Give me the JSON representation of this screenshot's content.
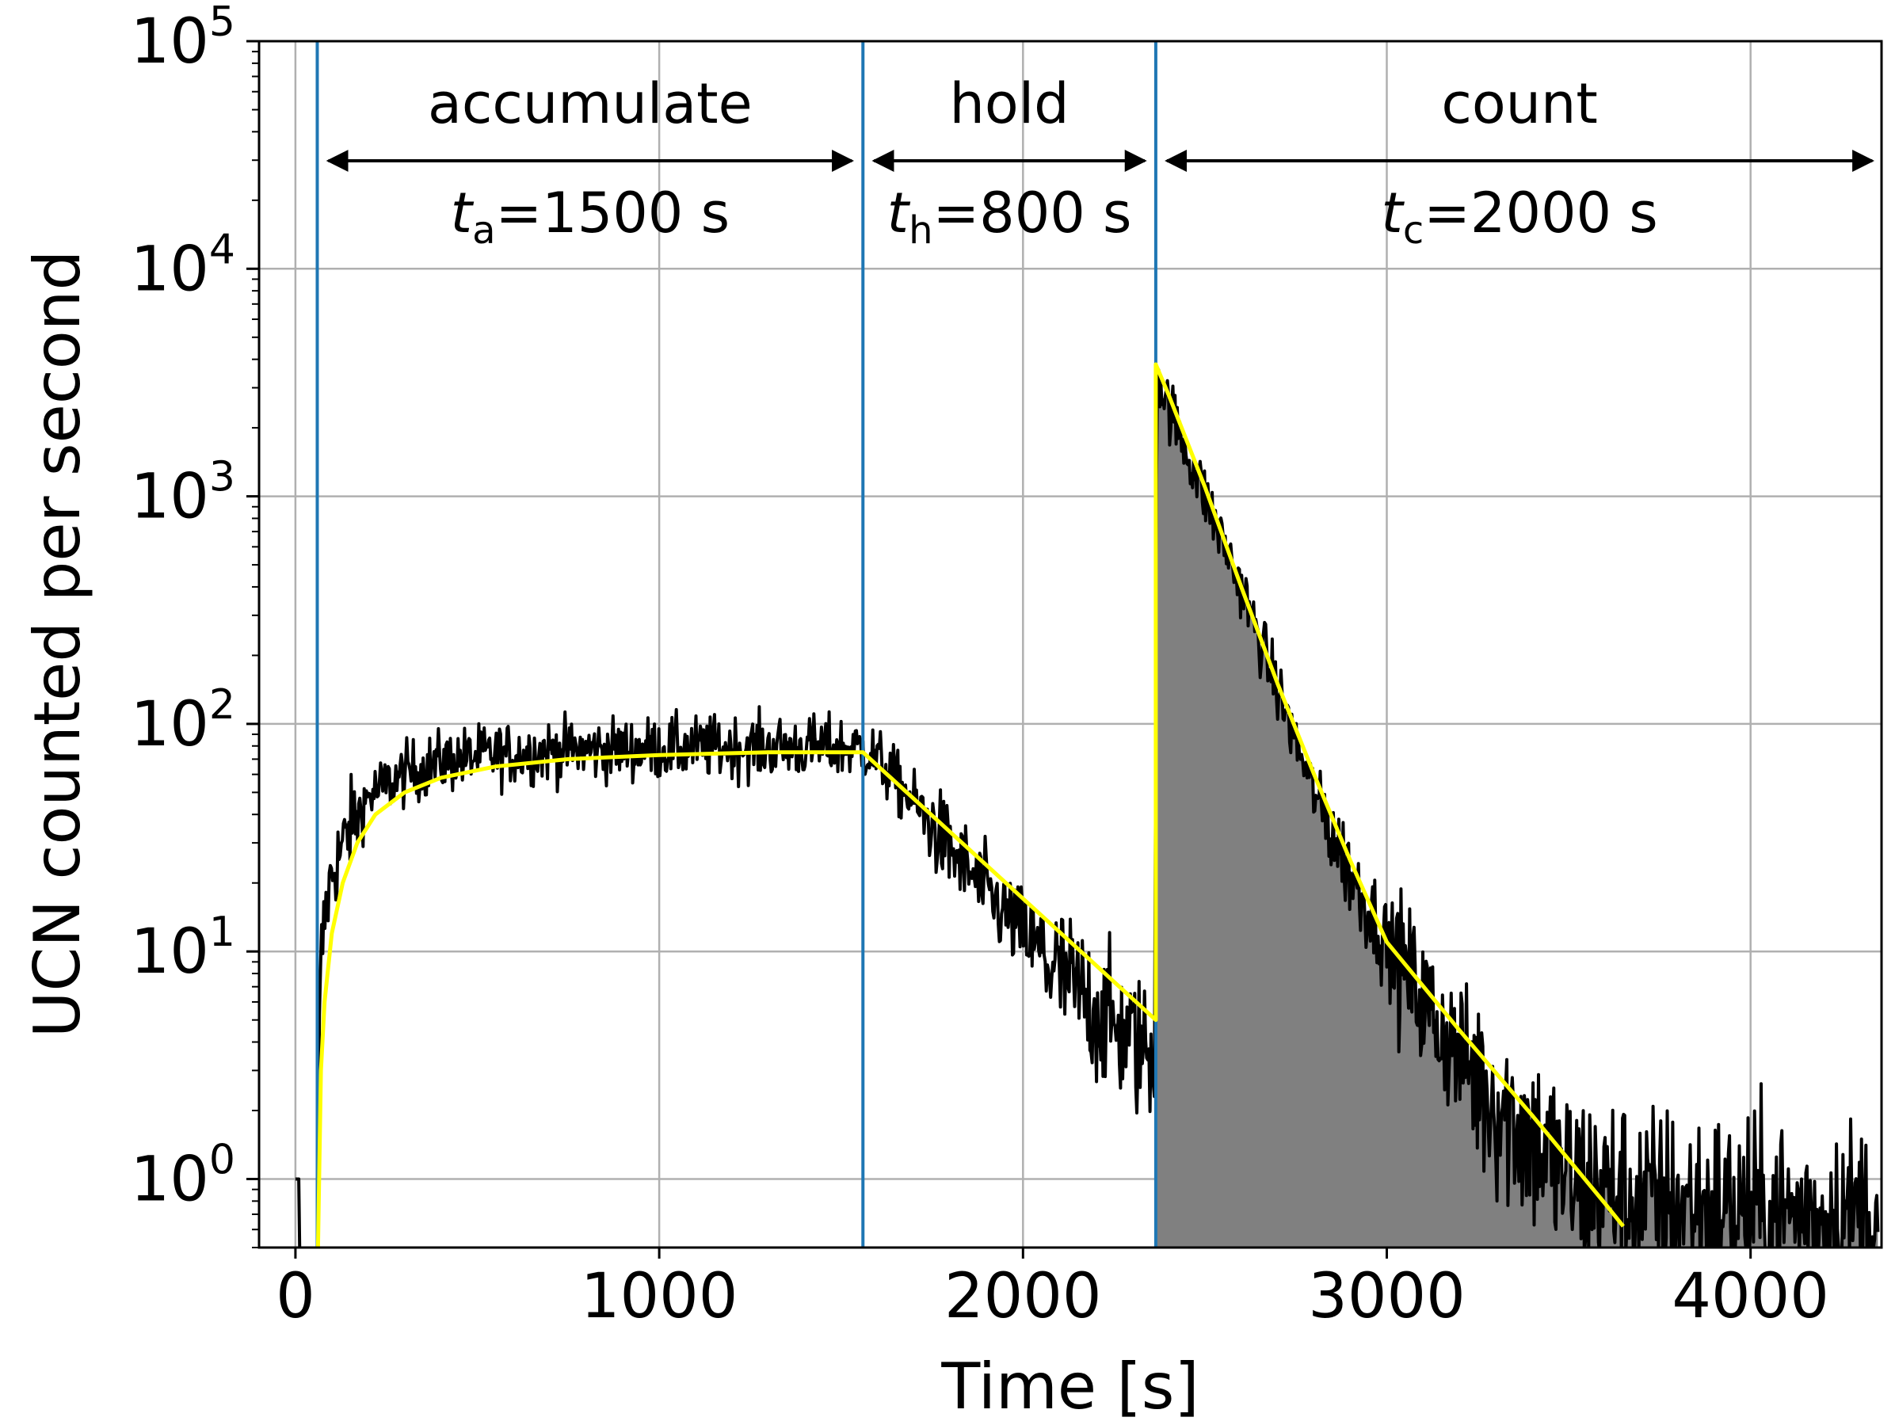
{
  "chart_data": {
    "type": "line",
    "xlabel": "Time [s]",
    "ylabel": "UCN counted per second",
    "xlim": [
      -100,
      4360
    ],
    "ylim": [
      0.5,
      100000
    ],
    "y_scale": "log",
    "grid": true,
    "x_ticks": [
      {
        "value": 0,
        "label": "0"
      },
      {
        "value": 1000,
        "label": "1000"
      },
      {
        "value": 2000,
        "label": "2000"
      },
      {
        "value": 3000,
        "label": "3000"
      },
      {
        "value": 4000,
        "label": "4000"
      }
    ],
    "y_ticks": [
      {
        "value": 1,
        "base": "10",
        "exp": "0"
      },
      {
        "value": 10,
        "base": "10",
        "exp": "1"
      },
      {
        "value": 100,
        "base": "10",
        "exp": "2"
      },
      {
        "value": 1000,
        "base": "10",
        "exp": "3"
      },
      {
        "value": 10000,
        "base": "10",
        "exp": "4"
      },
      {
        "value": 100000,
        "base": "10",
        "exp": "5"
      }
    ],
    "phase_boundaries": [
      60,
      1560,
      2365
    ],
    "phases": [
      {
        "name": "accumulate",
        "symbol": "t",
        "subscript": "a",
        "duration": "=1500 s",
        "start": 60,
        "end": 1560
      },
      {
        "name": "hold",
        "symbol": "t",
        "subscript": "h",
        "duration": "=800 s",
        "start": 1560,
        "end": 2365
      },
      {
        "name": "count",
        "symbol": "t",
        "subscript": "c",
        "duration": "=2000 s",
        "start": 2365,
        "end": 4365
      }
    ],
    "series": [
      {
        "role": "measured",
        "color": "#000000",
        "noise_sigma_log10": [
          0.07,
          0.1,
          0.16,
          0.22
        ],
        "x": [
          0,
          10,
          20,
          60,
          65,
          70,
          80,
          100,
          150,
          200,
          300,
          400,
          500,
          700,
          1000,
          1200,
          1400,
          1560,
          1600,
          1700,
          1800,
          1900,
          2000,
          2100,
          2200,
          2300,
          2362,
          2368,
          2380,
          2400,
          2500,
          2600,
          2700,
          2800,
          2900,
          3000,
          3100,
          3200,
          3300,
          3400,
          3500,
          3700,
          3900,
          4100,
          4350
        ],
        "y": [
          1,
          1,
          0.5,
          0.5,
          3,
          8,
          14,
          22,
          35,
          48,
          60,
          68,
          72,
          76,
          78,
          79,
          79,
          78,
          70,
          45,
          28,
          18,
          12,
          8,
          5.5,
          4,
          3.5,
          3800,
          3000,
          2500,
          1000,
          400,
          140,
          50,
          22,
          11,
          6,
          3.5,
          2.2,
          1.5,
          1.0,
          0.8,
          0.75,
          0.7,
          0.7
        ]
      },
      {
        "role": "fit",
        "color": "#ffff00",
        "x": [
          62,
          70,
          80,
          100,
          130,
          170,
          220,
          300,
          400,
          550,
          750,
          1000,
          1300,
          1560,
          2365,
          2365,
          2400,
          2500,
          2600,
          2700,
          2800,
          2900,
          3000,
          3200,
          3400,
          3600,
          3650
        ],
        "y": [
          0.5,
          3,
          6,
          12,
          20,
          30,
          40,
          50,
          58,
          65,
          70,
          73,
          75,
          75,
          5,
          3800,
          2800,
          1100,
          400,
          150,
          60,
          25,
          11,
          4.5,
          1.9,
          0.78,
          0.62
        ]
      }
    ],
    "fill": {
      "color": "#808080",
      "from_x": 2365
    }
  }
}
